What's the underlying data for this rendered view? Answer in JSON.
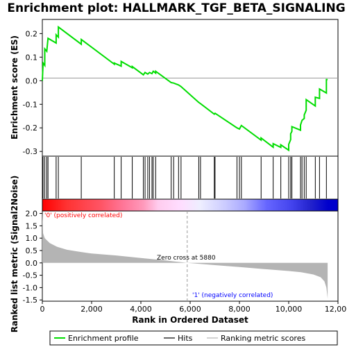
{
  "chart_data": {
    "type": "line",
    "title": "Enrichment plot: HALLMARK_TGF_BETA_SIGNALING",
    "ylabel_top": "Enrichment score (ES)",
    "ylabel_bottom": "Ranked list metric (Signal2Noise)",
    "xlabel": "Rank in Ordered Dataset",
    "xlim": [
      0,
      12000
    ],
    "x_ticks": [
      "0",
      "2,000",
      "4,000",
      "6,000",
      "8,000",
      "10,000",
      "12,000"
    ],
    "top_ylim": [
      -0.32,
      0.26
    ],
    "top_y_ticks": [
      "0.2",
      "0.1",
      "0.0",
      "-0.1",
      "-0.2",
      "-0.3"
    ],
    "bottom_ylim": [
      -1.55,
      2.1
    ],
    "bottom_y_ticks": [
      "2.0",
      "1.5",
      "1.0",
      "0.5",
      "0.0",
      "-0.5",
      "-1.0",
      "-1.5"
    ],
    "zero_cross_label": "Zero cross at 5880",
    "zero_cross_rank": 5880,
    "pos_label": "'0' (positively correlated)",
    "neg_label": "'1' (negatively correlated)",
    "colors": {
      "es_line": "#00dd00",
      "pos_label": "#ff0000",
      "neg_label": "#0000ff",
      "metric_fill": "#b4b4b4"
    },
    "legend": [
      "Enrichment profile",
      "Hits",
      "Ranking metric scores"
    ],
    "hits": [
      30,
      100,
      180,
      230,
      560,
      650,
      1580,
      2920,
      3200,
      3650,
      4100,
      4170,
      4280,
      4350,
      4450,
      4500,
      4600,
      5230,
      5330,
      5530,
      5630,
      6350,
      6420,
      6980,
      7010,
      7900,
      8000,
      8080,
      8880,
      9370,
      9680,
      10000,
      10080,
      10130,
      10480,
      10540,
      10630,
      10710,
      11080,
      11250,
      11530
    ],
    "es_profile": [
      [
        0,
        0.0
      ],
      [
        30,
        0.075
      ],
      [
        100,
        0.065
      ],
      [
        100,
        0.135
      ],
      [
        180,
        0.125
      ],
      [
        230,
        0.18
      ],
      [
        560,
        0.16
      ],
      [
        560,
        0.195
      ],
      [
        650,
        0.185
      ],
      [
        650,
        0.228
      ],
      [
        1580,
        0.155
      ],
      [
        1580,
        0.175
      ],
      [
        2920,
        0.07
      ],
      [
        2920,
        0.075
      ],
      [
        3200,
        0.062
      ],
      [
        3200,
        0.082
      ],
      [
        3650,
        0.055
      ],
      [
        3650,
        0.06
      ],
      [
        4100,
        0.025
      ],
      [
        4170,
        0.035
      ],
      [
        4280,
        0.028
      ],
      [
        4350,
        0.035
      ],
      [
        4450,
        0.03
      ],
      [
        4500,
        0.04
      ],
      [
        4600,
        0.032
      ],
      [
        4600,
        0.04
      ],
      [
        5230,
        -0.008
      ],
      [
        5330,
        -0.01
      ],
      [
        5530,
        -0.018
      ],
      [
        5630,
        -0.025
      ],
      [
        6350,
        -0.092
      ],
      [
        6420,
        -0.097
      ],
      [
        6980,
        -0.142
      ],
      [
        7010,
        -0.138
      ],
      [
        7900,
        -0.2
      ],
      [
        8000,
        -0.205
      ],
      [
        8080,
        -0.19
      ],
      [
        8880,
        -0.252
      ],
      [
        8880,
        -0.243
      ],
      [
        9370,
        -0.282
      ],
      [
        9370,
        -0.267
      ],
      [
        9680,
        -0.283
      ],
      [
        9680,
        -0.272
      ],
      [
        10000,
        -0.295
      ],
      [
        10000,
        -0.27
      ],
      [
        10080,
        -0.25
      ],
      [
        10080,
        -0.225
      ],
      [
        10130,
        -0.215
      ],
      [
        10130,
        -0.195
      ],
      [
        10480,
        -0.21
      ],
      [
        10480,
        -0.188
      ],
      [
        10540,
        -0.168
      ],
      [
        10630,
        -0.16
      ],
      [
        10630,
        -0.145
      ],
      [
        10710,
        -0.125
      ],
      [
        10710,
        -0.08
      ],
      [
        11080,
        -0.107
      ],
      [
        11080,
        -0.07
      ],
      [
        11250,
        -0.075
      ],
      [
        11250,
        -0.035
      ],
      [
        11530,
        -0.052
      ],
      [
        11530,
        0.005
      ],
      [
        11580,
        0.005
      ]
    ],
    "metric_curve": [
      [
        0,
        2.05
      ],
      [
        30,
        1.2
      ],
      [
        100,
        1.0
      ],
      [
        300,
        0.8
      ],
      [
        600,
        0.65
      ],
      [
        1000,
        0.53
      ],
      [
        1500,
        0.45
      ],
      [
        2000,
        0.38
      ],
      [
        3000,
        0.3
      ],
      [
        4000,
        0.2
      ],
      [
        5000,
        0.1
      ],
      [
        5880,
        0.0
      ],
      [
        7000,
        -0.09
      ],
      [
        8000,
        -0.17
      ],
      [
        9000,
        -0.25
      ],
      [
        10000,
        -0.33
      ],
      [
        10500,
        -0.38
      ],
      [
        11000,
        -0.47
      ],
      [
        11300,
        -0.58
      ],
      [
        11450,
        -0.75
      ],
      [
        11530,
        -1.0
      ],
      [
        11580,
        -1.45
      ]
    ],
    "color_bar_stops": [
      [
        0,
        "#ff0000"
      ],
      [
        1000,
        "#ff3333"
      ],
      [
        2400,
        "#ff5566"
      ],
      [
        3300,
        "#ff7799"
      ],
      [
        4100,
        "#ff99bb"
      ],
      [
        4700,
        "#ffccee"
      ],
      [
        5600,
        "#ffddff"
      ],
      [
        6400,
        "#eeeeff"
      ],
      [
        7400,
        "#ccccff"
      ],
      [
        8200,
        "#aaaaff"
      ],
      [
        9100,
        "#6666ff"
      ],
      [
        10100,
        "#4444ee"
      ],
      [
        10900,
        "#2222cc"
      ],
      [
        11600,
        "#0000cc"
      ]
    ]
  }
}
